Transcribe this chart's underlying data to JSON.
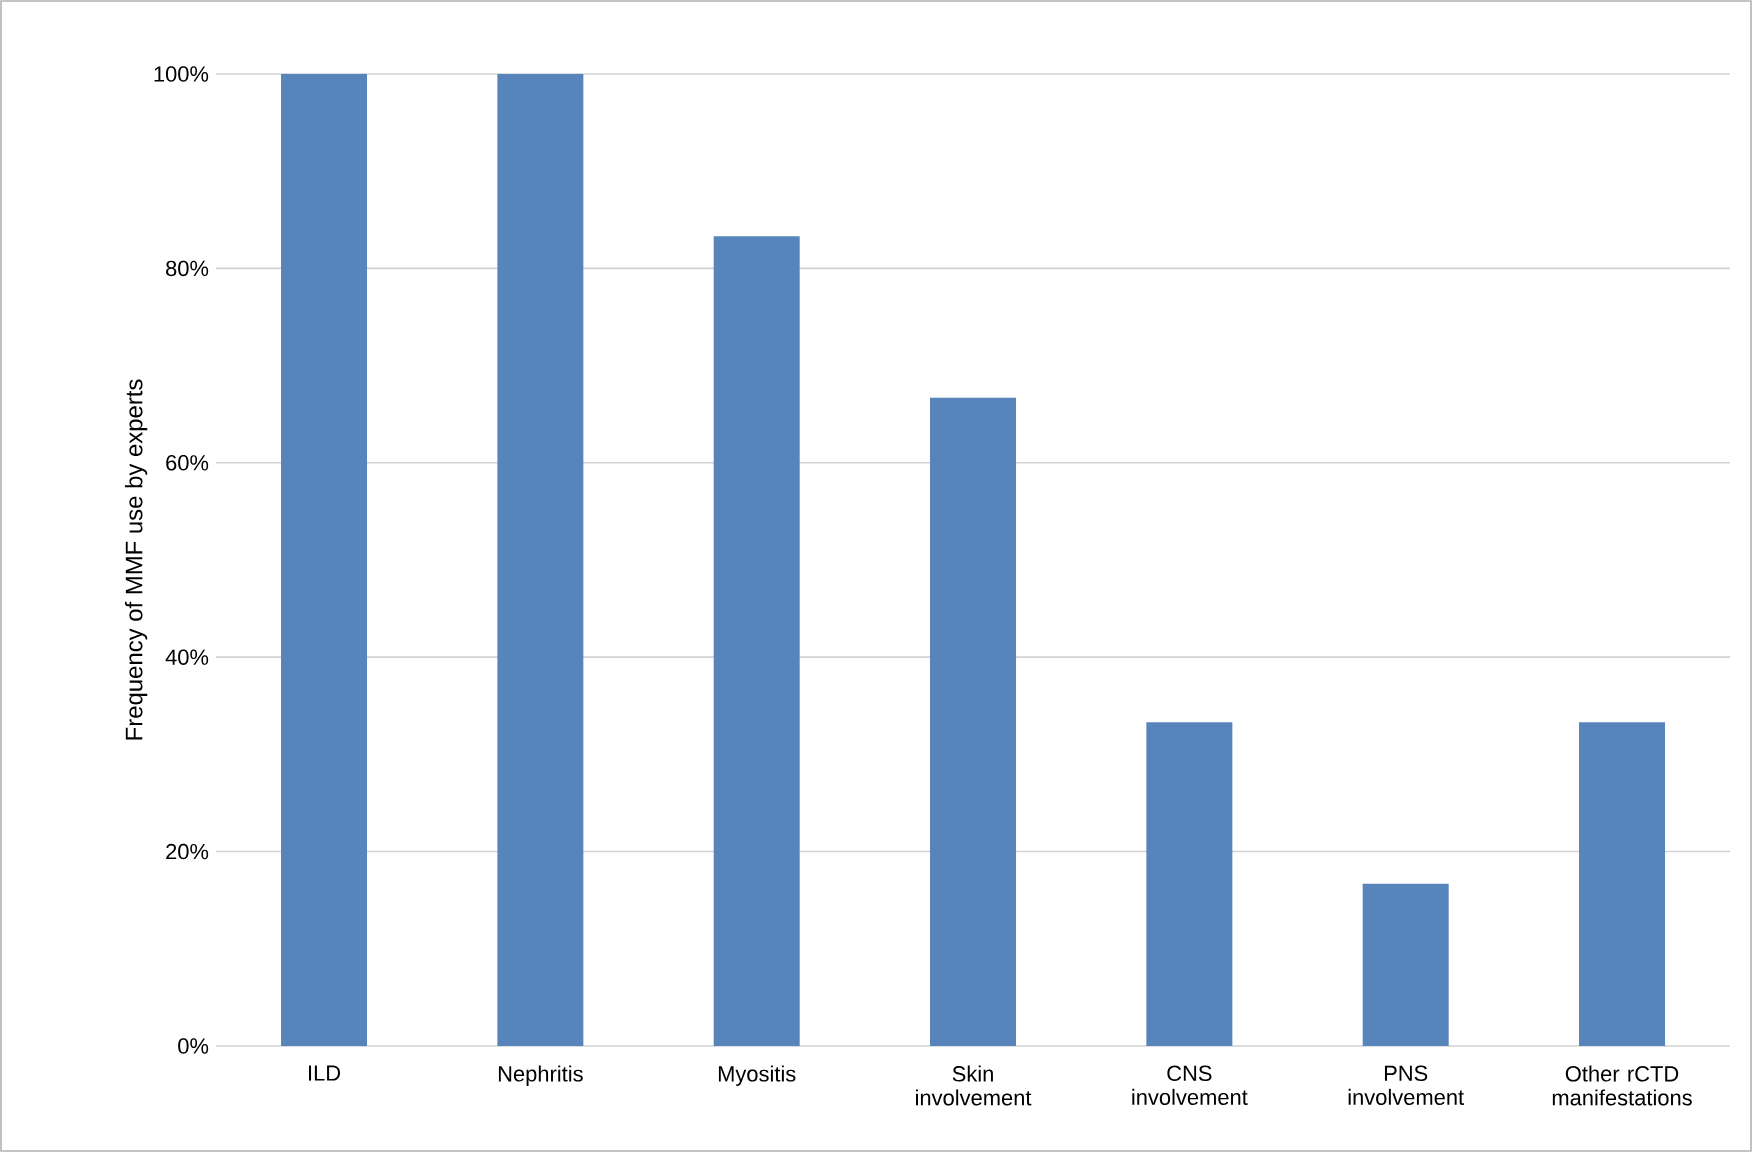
{
  "chart_data": {
    "type": "bar",
    "ylabel": "Frequency of MMF use by experts",
    "categories": [
      "ILD",
      "Nephritis",
      "Myositis",
      "Skin involvement",
      "CNS involvement",
      "PNS involvement",
      "Other rCTD manifestations"
    ],
    "values": [
      100,
      100,
      83.3,
      66.7,
      33.3,
      16.7,
      33.3
    ],
    "color": "#5884bc",
    "ylim": [
      0,
      100
    ],
    "yticks": [
      {
        "value": 0,
        "label": "0%"
      },
      {
        "value": 20,
        "label": "20%"
      },
      {
        "value": 40,
        "label": "40%"
      },
      {
        "value": 60,
        "label": "60%"
      },
      {
        "value": 80,
        "label": "80%"
      },
      {
        "value": 100,
        "label": "100%"
      }
    ],
    "grid": "y"
  }
}
